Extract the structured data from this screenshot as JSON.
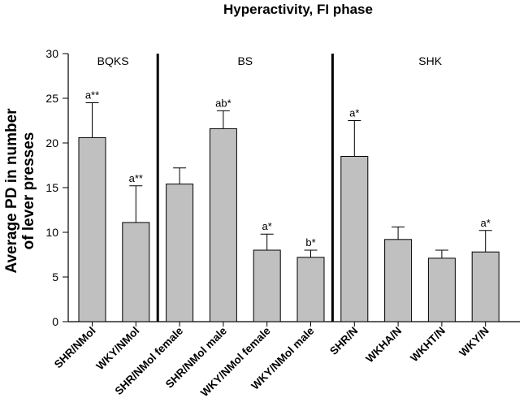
{
  "chart_data": {
    "type": "bar",
    "title": "Hyperactivity, FI phase",
    "ylabel_lines": [
      "Average PD in number",
      "of lever presses"
    ],
    "xlabel": "",
    "ylim": [
      0,
      30
    ],
    "yticks": [
      0,
      5,
      10,
      15,
      20,
      25,
      30
    ],
    "grid": false,
    "bar_color": "#c0c0c0",
    "groups": [
      {
        "name": "BQKS",
        "categories": [
          0,
          1
        ]
      },
      {
        "name": "BS",
        "categories": [
          2,
          3,
          4,
          5
        ]
      },
      {
        "name": "SHK",
        "categories": [
          6,
          7,
          8,
          9
        ]
      }
    ],
    "categories": [
      "SHR/NMol",
      "WKY/NMol",
      "SHR/NMol female",
      "SHR/NMol male",
      "WKY/NMol female",
      "WKY/NMol male",
      "SHR/N",
      "WKHA/N",
      "WKHT/N",
      "WKY/N"
    ],
    "values": [
      20.6,
      11.1,
      15.4,
      21.6,
      8.0,
      7.2,
      18.5,
      9.2,
      7.1,
      7.8
    ],
    "error_upper": [
      24.5,
      15.2,
      17.2,
      23.6,
      9.8,
      8.0,
      22.5,
      10.6,
      8.0,
      10.2
    ],
    "annotations": [
      "a**",
      "a**",
      "",
      "ab*",
      "a*",
      "b*",
      "a*",
      "",
      "",
      "a*"
    ]
  }
}
